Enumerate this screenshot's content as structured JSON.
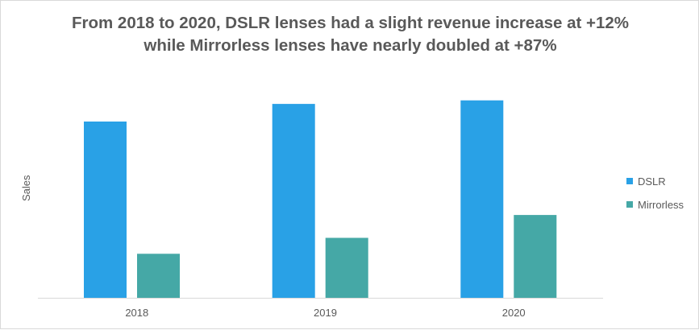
{
  "chart_data": {
    "type": "bar",
    "title": [
      "From 2018 to 2020, DSLR lenses had a slight revenue increase at +12%",
      "while Mirrorless lenses have nearly doubled at +87%"
    ],
    "xlabel": "",
    "ylabel": "Sales",
    "categories": [
      "2018",
      "2019",
      "2020"
    ],
    "series": [
      {
        "name": "DSLR",
        "values": [
          100,
          110,
          112
        ],
        "color": "#29a1e6"
      },
      {
        "name": "Mirrorless",
        "values": [
          25,
          34,
          47
        ],
        "color": "#45a8a6"
      }
    ],
    "ylim": [
      0,
      125
    ],
    "grid": false,
    "legend_position": "right",
    "y_ticks_visible": false
  }
}
